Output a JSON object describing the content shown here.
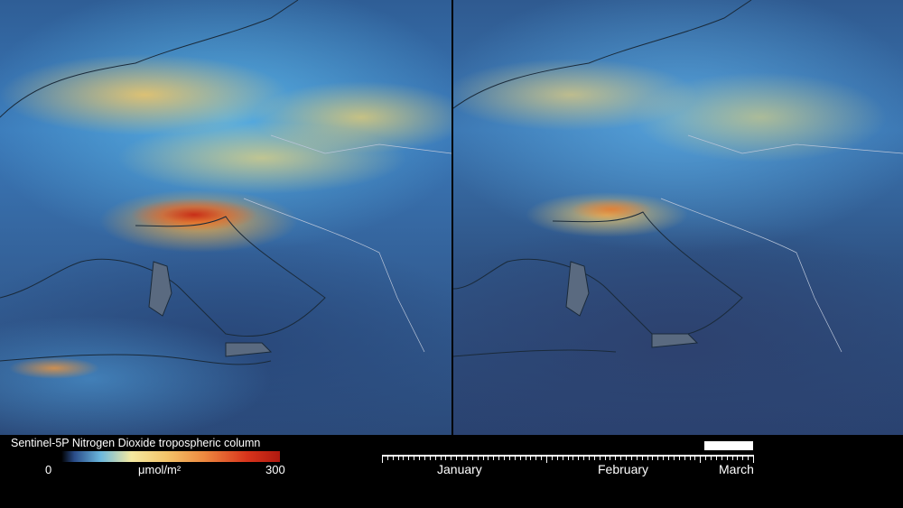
{
  "maps": {
    "left": {
      "name": "no2-map-before"
    },
    "right": {
      "name": "no2-map-after"
    }
  },
  "legend": {
    "title": "Sentinel-5P Nitrogen Dioxide tropospheric column",
    "min": "0",
    "max": "300",
    "unit": "μmol/m²",
    "colors": [
      "#000000",
      "#2a4d8a",
      "#6bb8de",
      "#f4e9a0",
      "#f3c46a",
      "#ee8a40",
      "#d8341c",
      "#b01a10"
    ]
  },
  "timeline": {
    "months": [
      "January",
      "February",
      "March"
    ],
    "current_position": 0.96
  }
}
